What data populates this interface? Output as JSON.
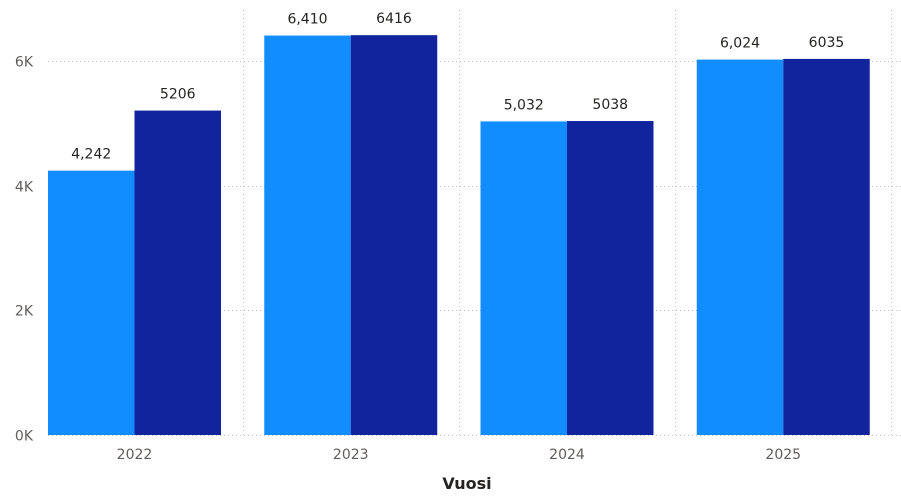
{
  "chart_data": {
    "type": "bar",
    "categories": [
      "2022",
      "2023",
      "2024",
      "2025"
    ],
    "series": [
      {
        "values": [
          4242,
          6410,
          5032,
          6024
        ],
        "labels": [
          "4,242",
          "6,410",
          "5,032",
          "6,024"
        ],
        "color": "#118dff"
      },
      {
        "values": [
          5206,
          6416,
          5038,
          6035
        ],
        "labels": [
          "5206",
          "6416",
          "5038",
          "6035"
        ],
        "color": "#12239e"
      }
    ],
    "xlabel": "Vuosi",
    "ylabel": "",
    "ylim": [
      0,
      6900
    ],
    "yticks": [
      0,
      2000,
      4000,
      6000
    ],
    "ytick_labels": [
      "0K",
      "2K",
      "4K",
      "6K"
    ],
    "grid": true,
    "legend": "none"
  }
}
